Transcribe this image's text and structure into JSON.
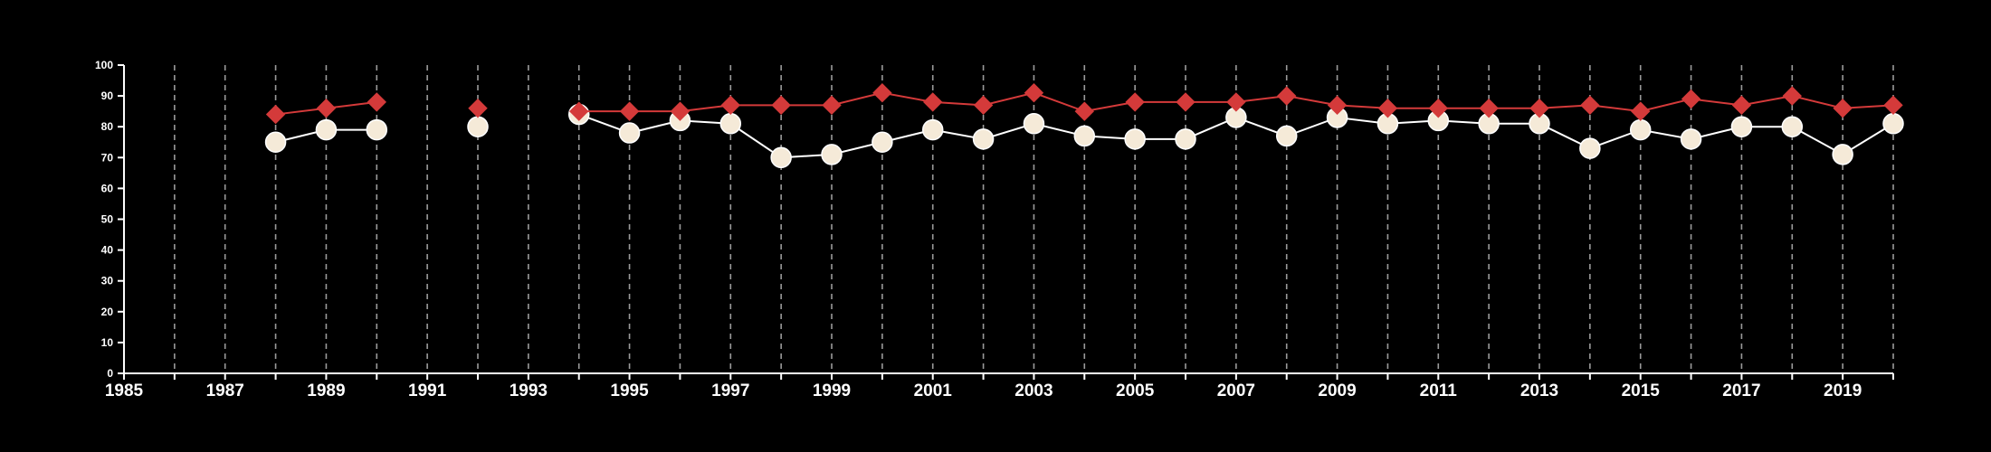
{
  "chart_data": {
    "type": "line",
    "title": "",
    "xlabel": "",
    "ylabel": "",
    "xlim": [
      1985,
      2020
    ],
    "ylim": [
      0,
      100
    ],
    "y_ticks": [
      0,
      10,
      20,
      30,
      40,
      50,
      60,
      70,
      80,
      90,
      100
    ],
    "x_tick_labels": [
      1985,
      1987,
      1989,
      1991,
      1993,
      1995,
      1997,
      1999,
      2001,
      2003,
      2005,
      2007,
      2009,
      2011,
      2013,
      2015,
      2017,
      2019
    ],
    "vertical_gridlines_every_year": true,
    "gridline_style": "dashed",
    "background": "#000000",
    "axis_color": "#ffffff",
    "series": [
      {
        "marker": "diamond",
        "color": "#d43a3a",
        "points": [
          [
            1988,
            84
          ],
          [
            1989,
            86
          ],
          [
            1990,
            88
          ],
          [
            1992,
            86
          ],
          [
            1994,
            85
          ],
          [
            1995,
            85
          ],
          [
            1996,
            85
          ],
          [
            1997,
            87
          ],
          [
            1998,
            87
          ],
          [
            1999,
            87
          ],
          [
            2000,
            91
          ],
          [
            2001,
            88
          ],
          [
            2002,
            87
          ],
          [
            2003,
            91
          ],
          [
            2004,
            85
          ],
          [
            2005,
            88
          ],
          [
            2006,
            88
          ],
          [
            2007,
            88
          ],
          [
            2008,
            90
          ],
          [
            2009,
            87
          ],
          [
            2010,
            86
          ],
          [
            2011,
            86
          ],
          [
            2012,
            86
          ],
          [
            2013,
            86
          ],
          [
            2014,
            87
          ],
          [
            2015,
            85
          ],
          [
            2016,
            89
          ],
          [
            2017,
            87
          ],
          [
            2018,
            90
          ],
          [
            2019,
            86
          ],
          [
            2020,
            87
          ]
        ]
      },
      {
        "marker": "circle",
        "color": "#f5ead8",
        "line_color": "#ffffff",
        "points": [
          [
            1988,
            75
          ],
          [
            1989,
            79
          ],
          [
            1990,
            79
          ],
          [
            1992,
            80
          ],
          [
            1994,
            84
          ],
          [
            1995,
            78
          ],
          [
            1996,
            82
          ],
          [
            1997,
            81
          ],
          [
            1998,
            70
          ],
          [
            1999,
            71
          ],
          [
            2000,
            75
          ],
          [
            2001,
            79
          ],
          [
            2002,
            76
          ],
          [
            2003,
            81
          ],
          [
            2004,
            77
          ],
          [
            2005,
            76
          ],
          [
            2006,
            76
          ],
          [
            2007,
            83
          ],
          [
            2008,
            77
          ],
          [
            2009,
            83
          ],
          [
            2010,
            81
          ],
          [
            2011,
            82
          ],
          [
            2012,
            81
          ],
          [
            2013,
            81
          ],
          [
            2014,
            73
          ],
          [
            2015,
            79
          ],
          [
            2016,
            76
          ],
          [
            2017,
            80
          ],
          [
            2018,
            80
          ],
          [
            2019,
            71
          ],
          [
            2020,
            81
          ]
        ]
      }
    ]
  }
}
